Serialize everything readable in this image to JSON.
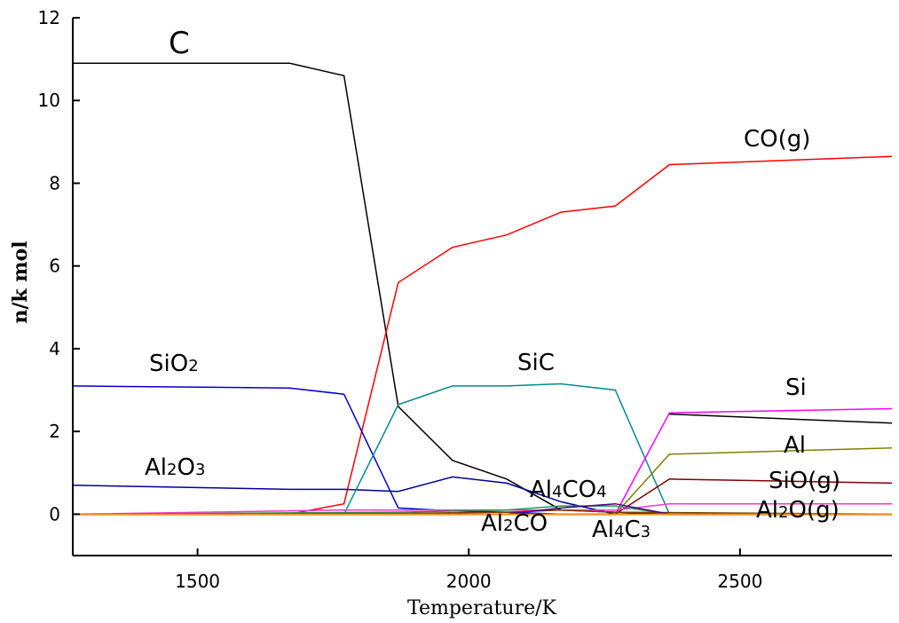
{
  "chart_data": {
    "type": "line",
    "title": "",
    "xlabel": "Temperature/K",
    "ylabel": "n/k mol",
    "xlim": [
      1270,
      2780
    ],
    "ylim": [
      -1,
      12
    ],
    "xticks": [
      1500,
      2000,
      2500
    ],
    "yticks": [
      0,
      2,
      4,
      6,
      8,
      10,
      12
    ],
    "grid": false,
    "series": [
      {
        "id": "c",
        "label_parts": [
          {
            "t": "C"
          }
        ],
        "color": "#000000",
        "x": [
          1270,
          1670,
          1770,
          1870,
          1970,
          2070,
          2170,
          2270,
          2370,
          2780
        ],
        "y": [
          10.9,
          10.9,
          10.6,
          2.6,
          1.3,
          0.85,
          0.1,
          0.05,
          0.0,
          0.0
        ]
      },
      {
        "id": "co-g",
        "label_parts": [
          {
            "t": "CO(g)"
          }
        ],
        "color": "#ff0000",
        "x": [
          1270,
          1670,
          1770,
          1870,
          1970,
          2070,
          2170,
          2270,
          2370,
          2780
        ],
        "y": [
          0.0,
          0.0,
          0.25,
          5.6,
          6.45,
          6.75,
          7.3,
          7.45,
          8.45,
          8.65
        ]
      },
      {
        "id": "sio2",
        "label_parts": [
          {
            "t": "SiO"
          },
          {
            "t": "2",
            "sub": true
          }
        ],
        "color": "#0000cc",
        "x": [
          1270,
          1670,
          1770,
          1870,
          1970,
          2070,
          2170,
          2270,
          2780
        ],
        "y": [
          3.1,
          3.05,
          2.9,
          0.15,
          0.08,
          0.05,
          0.0,
          0.0,
          0.0
        ]
      },
      {
        "id": "al2o3",
        "label_parts": [
          {
            "t": "Al"
          },
          {
            "t": "2",
            "sub": true
          },
          {
            "t": "O"
          },
          {
            "t": "3",
            "sub": true
          }
        ],
        "color": "#000099",
        "x": [
          1270,
          1670,
          1770,
          1870,
          1970,
          2070,
          2170,
          2270,
          2780
        ],
        "y": [
          0.7,
          0.6,
          0.6,
          0.55,
          0.9,
          0.75,
          0.3,
          0.0,
          0.0
        ]
      },
      {
        "id": "sic",
        "label_parts": [
          {
            "t": "SiC"
          }
        ],
        "color": "#008b8b",
        "x": [
          1270,
          1770,
          1870,
          1970,
          2070,
          2170,
          2270,
          2370,
          2780
        ],
        "y": [
          0.0,
          0.0,
          2.65,
          3.1,
          3.1,
          3.15,
          3.0,
          0.0,
          0.0
        ]
      },
      {
        "id": "si",
        "label_parts": [
          {
            "t": "Si"
          }
        ],
        "color": "#ff00ff",
        "x": [
          1270,
          2270,
          2370,
          2780
        ],
        "y": [
          0.0,
          0.0,
          2.45,
          2.55
        ]
      },
      {
        "id": "si-black",
        "label_parts": [],
        "color": "#000000",
        "x": [
          2370,
          2780
        ],
        "y": [
          2.42,
          2.2
        ]
      },
      {
        "id": "al",
        "label_parts": [
          {
            "t": "Al"
          }
        ],
        "color": "#808000",
        "x": [
          1270,
          2270,
          2370,
          2780
        ],
        "y": [
          0.0,
          0.0,
          1.45,
          1.6
        ]
      },
      {
        "id": "sio-g",
        "label_parts": [
          {
            "t": "SiO(g)"
          }
        ],
        "color": "#800000",
        "x": [
          1270,
          2270,
          2370,
          2780
        ],
        "y": [
          0.0,
          0.0,
          0.85,
          0.75
        ]
      },
      {
        "id": "al2o-g",
        "label_parts": [
          {
            "t": "Al"
          },
          {
            "t": "2",
            "sub": true
          },
          {
            "t": "O(g)"
          }
        ],
        "color": "#ff33cc",
        "x": [
          1270,
          1770,
          2270,
          2370,
          2780
        ],
        "y": [
          0.0,
          0.1,
          0.1,
          0.25,
          0.25
        ]
      },
      {
        "id": "al4co4",
        "label_parts": [
          {
            "t": "Al"
          },
          {
            "t": "4",
            "sub": true
          },
          {
            "t": "CO"
          },
          {
            "t": "4",
            "sub": true
          }
        ],
        "color": "#2e8b57",
        "x": [
          1270,
          1870,
          2070,
          2170,
          2270,
          2370,
          2780
        ],
        "y": [
          0.0,
          0.05,
          0.1,
          0.2,
          0.2,
          0.0,
          0.0
        ]
      },
      {
        "id": "al2co",
        "label_parts": [
          {
            "t": "Al"
          },
          {
            "t": "2",
            "sub": true
          },
          {
            "t": "CO"
          }
        ],
        "color": "#7b3f00",
        "x": [
          1270,
          1870,
          2070,
          2170,
          2270,
          2780
        ],
        "y": [
          0.0,
          0.02,
          0.05,
          0.1,
          0.05,
          0.0
        ]
      },
      {
        "id": "al4c3",
        "label_parts": [
          {
            "t": "Al"
          },
          {
            "t": "4",
            "sub": true
          },
          {
            "t": "C"
          },
          {
            "t": "3",
            "sub": true
          }
        ],
        "color": "#4b0082",
        "x": [
          1270,
          2070,
          2170,
          2270,
          2370,
          2780
        ],
        "y": [
          0.0,
          0.0,
          0.15,
          0.25,
          0.0,
          0.0
        ]
      },
      {
        "id": "baseline",
        "label_parts": [],
        "color": "#ff8c00",
        "x": [
          1270,
          2780
        ],
        "y": [
          0.0,
          0.0
        ]
      }
    ]
  }
}
